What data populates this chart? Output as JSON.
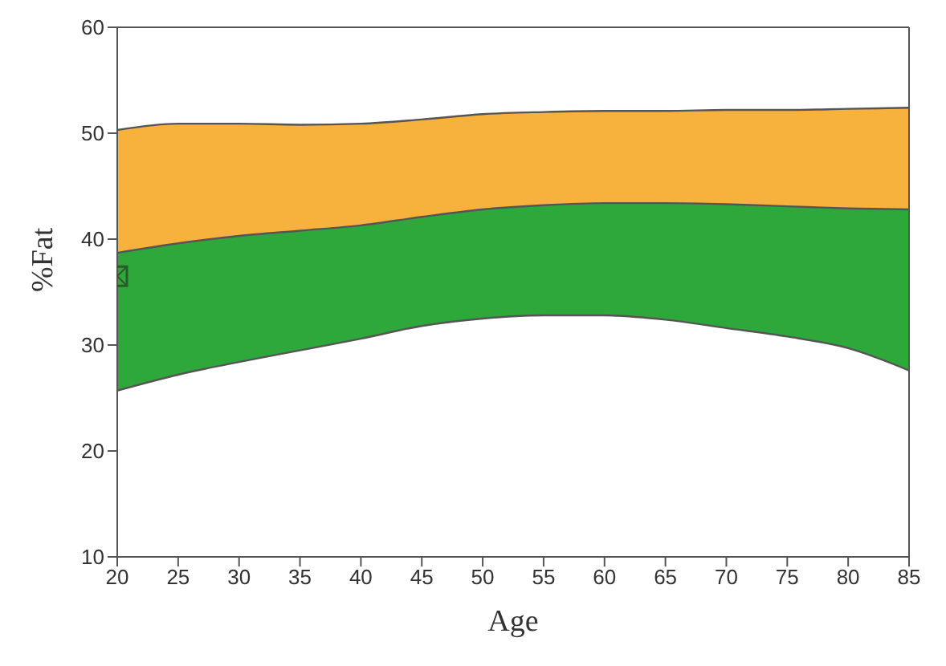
{
  "chart_data": {
    "type": "area",
    "xlabel": "Age",
    "ylabel": "%Fat",
    "x": [
      20,
      25,
      30,
      35,
      40,
      45,
      50,
      55,
      60,
      65,
      70,
      75,
      80,
      85
    ],
    "series": [
      {
        "color": "#f7b13d",
        "values": [
          50.3,
          50.9,
          50.9,
          50.8,
          50.9,
          51.3,
          51.8,
          52,
          52.1,
          52.1,
          52.2,
          52.2,
          52.3,
          52.4
        ]
      },
      {
        "color": "#2ea83a",
        "values": [
          38.7,
          39.6,
          40.3,
          40.8,
          41.3,
          42.1,
          42.8,
          43.2,
          43.4,
          43.4,
          43.3,
          43.1,
          42.9,
          42.8
        ]
      },
      {
        "color": "#ffffff",
        "values": [
          25.7,
          27.2,
          28.4,
          29.5,
          30.6,
          31.8,
          32.5,
          32.8,
          32.8,
          32.4,
          31.6,
          30.8,
          29.7,
          27.6
        ]
      },
      {
        "type": "scatter",
        "color": "#2a5a2a",
        "x": [
          20
        ],
        "values": [
          36.5
        ],
        "marker": "square"
      }
    ],
    "xlim": [
      20,
      85
    ],
    "xticks": [
      20,
      25,
      30,
      35,
      40,
      45,
      50,
      55,
      60,
      65,
      70,
      75,
      80,
      85
    ],
    "ylim": [
      10,
      60
    ],
    "yticks": [
      10,
      20,
      30,
      40,
      50,
      60
    ],
    "grid": false,
    "legend": false
  }
}
